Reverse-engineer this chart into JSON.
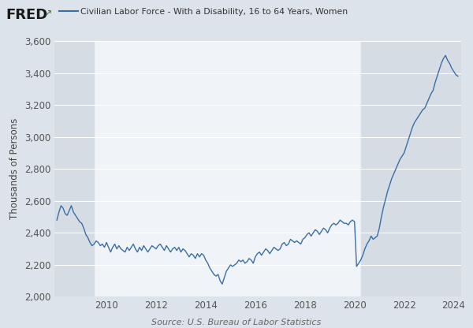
{
  "title": "Civilian Labor Force - With a Disability, 16 to 64 Years, Women",
  "ylabel": "Thousands of Persons",
  "source": "Source: U.S. Bureau of Labor Statistics",
  "line_color": "#3a6ea5",
  "background_color": "#dce3ea",
  "plot_bg_color": "#f0f4f8",
  "shaded_left_color": "#d5dce4",
  "shaded_right_color": "#d5dce4",
  "ylim": [
    2000,
    3600
  ],
  "yticks": [
    2000,
    2200,
    2400,
    2600,
    2800,
    3000,
    3200,
    3400,
    3600
  ],
  "shaded_left_start": 2007.9,
  "shaded_left_end": 2009.5,
  "shaded_right_start": 2020.25,
  "shaded_right_end": 2024.5,
  "xlim_start": 2007.9,
  "xlim_end": 2024.3,
  "xticks": [
    2010,
    2012,
    2014,
    2016,
    2018,
    2020,
    2022,
    2024
  ],
  "time_points": [
    2008.0,
    2008.083,
    2008.167,
    2008.25,
    2008.333,
    2008.417,
    2008.5,
    2008.583,
    2008.667,
    2008.75,
    2008.833,
    2008.917,
    2009.0,
    2009.083,
    2009.167,
    2009.25,
    2009.333,
    2009.417,
    2009.5,
    2009.583,
    2009.667,
    2009.75,
    2009.833,
    2009.917,
    2010.0,
    2010.083,
    2010.167,
    2010.25,
    2010.333,
    2010.417,
    2010.5,
    2010.583,
    2010.667,
    2010.75,
    2010.833,
    2010.917,
    2011.0,
    2011.083,
    2011.167,
    2011.25,
    2011.333,
    2011.417,
    2011.5,
    2011.583,
    2011.667,
    2011.75,
    2011.833,
    2011.917,
    2012.0,
    2012.083,
    2012.167,
    2012.25,
    2012.333,
    2012.417,
    2012.5,
    2012.583,
    2012.667,
    2012.75,
    2012.833,
    2012.917,
    2013.0,
    2013.083,
    2013.167,
    2013.25,
    2013.333,
    2013.417,
    2013.5,
    2013.583,
    2013.667,
    2013.75,
    2013.833,
    2013.917,
    2014.0,
    2014.083,
    2014.167,
    2014.25,
    2014.333,
    2014.417,
    2014.5,
    2014.583,
    2014.667,
    2014.75,
    2014.833,
    2014.917,
    2015.0,
    2015.083,
    2015.167,
    2015.25,
    2015.333,
    2015.417,
    2015.5,
    2015.583,
    2015.667,
    2015.75,
    2015.833,
    2015.917,
    2016.0,
    2016.083,
    2016.167,
    2016.25,
    2016.333,
    2016.417,
    2016.5,
    2016.583,
    2016.667,
    2016.75,
    2016.833,
    2016.917,
    2017.0,
    2017.083,
    2017.167,
    2017.25,
    2017.333,
    2017.417,
    2017.5,
    2017.583,
    2017.667,
    2017.75,
    2017.833,
    2017.917,
    2018.0,
    2018.083,
    2018.167,
    2018.25,
    2018.333,
    2018.417,
    2018.5,
    2018.583,
    2018.667,
    2018.75,
    2018.833,
    2018.917,
    2019.0,
    2019.083,
    2019.167,
    2019.25,
    2019.333,
    2019.417,
    2019.5,
    2019.583,
    2019.667,
    2019.75,
    2019.833,
    2019.917,
    2020.0,
    2020.083,
    2020.167,
    2020.25,
    2020.333,
    2020.417,
    2020.5,
    2020.583,
    2020.667,
    2020.75,
    2020.833,
    2020.917,
    2021.0,
    2021.083,
    2021.167,
    2021.25,
    2021.333,
    2021.417,
    2021.5,
    2021.583,
    2021.667,
    2021.75,
    2021.833,
    2021.917,
    2022.0,
    2022.083,
    2022.167,
    2022.25,
    2022.333,
    2022.417,
    2022.5,
    2022.583,
    2022.667,
    2022.75,
    2022.833,
    2022.917,
    2023.0,
    2023.083,
    2023.167,
    2023.25,
    2023.333,
    2023.417,
    2023.5,
    2023.583,
    2023.667,
    2023.75,
    2023.833,
    2023.917,
    2024.0,
    2024.083,
    2024.167
  ],
  "values": [
    2480,
    2530,
    2570,
    2555,
    2520,
    2510,
    2540,
    2570,
    2530,
    2510,
    2490,
    2470,
    2460,
    2430,
    2390,
    2370,
    2340,
    2320,
    2330,
    2350,
    2340,
    2320,
    2330,
    2310,
    2340,
    2310,
    2280,
    2310,
    2330,
    2300,
    2320,
    2300,
    2290,
    2280,
    2310,
    2290,
    2310,
    2330,
    2300,
    2280,
    2310,
    2290,
    2320,
    2300,
    2280,
    2300,
    2320,
    2310,
    2300,
    2320,
    2330,
    2310,
    2290,
    2320,
    2300,
    2280,
    2300,
    2310,
    2290,
    2310,
    2280,
    2300,
    2290,
    2270,
    2250,
    2270,
    2260,
    2240,
    2270,
    2250,
    2270,
    2260,
    2230,
    2210,
    2180,
    2160,
    2140,
    2130,
    2140,
    2100,
    2080,
    2120,
    2160,
    2180,
    2200,
    2190,
    2200,
    2210,
    2230,
    2220,
    2230,
    2210,
    2220,
    2240,
    2230,
    2210,
    2250,
    2270,
    2280,
    2260,
    2280,
    2300,
    2290,
    2270,
    2290,
    2310,
    2300,
    2290,
    2300,
    2330,
    2340,
    2320,
    2330,
    2360,
    2350,
    2340,
    2350,
    2340,
    2330,
    2360,
    2370,
    2390,
    2400,
    2380,
    2400,
    2420,
    2410,
    2390,
    2410,
    2430,
    2420,
    2400,
    2430,
    2450,
    2460,
    2450,
    2460,
    2480,
    2470,
    2460,
    2460,
    2450,
    2470,
    2480,
    2470,
    2190,
    2210,
    2230,
    2260,
    2300,
    2330,
    2350,
    2380,
    2360,
    2370,
    2380,
    2430,
    2500,
    2560,
    2610,
    2660,
    2700,
    2740,
    2770,
    2800,
    2830,
    2860,
    2880,
    2900,
    2940,
    2980,
    3020,
    3060,
    3090,
    3110,
    3130,
    3150,
    3170,
    3180,
    3210,
    3240,
    3270,
    3290,
    3340,
    3380,
    3420,
    3460,
    3490,
    3510,
    3480,
    3460,
    3430,
    3410,
    3390,
    3380
  ]
}
